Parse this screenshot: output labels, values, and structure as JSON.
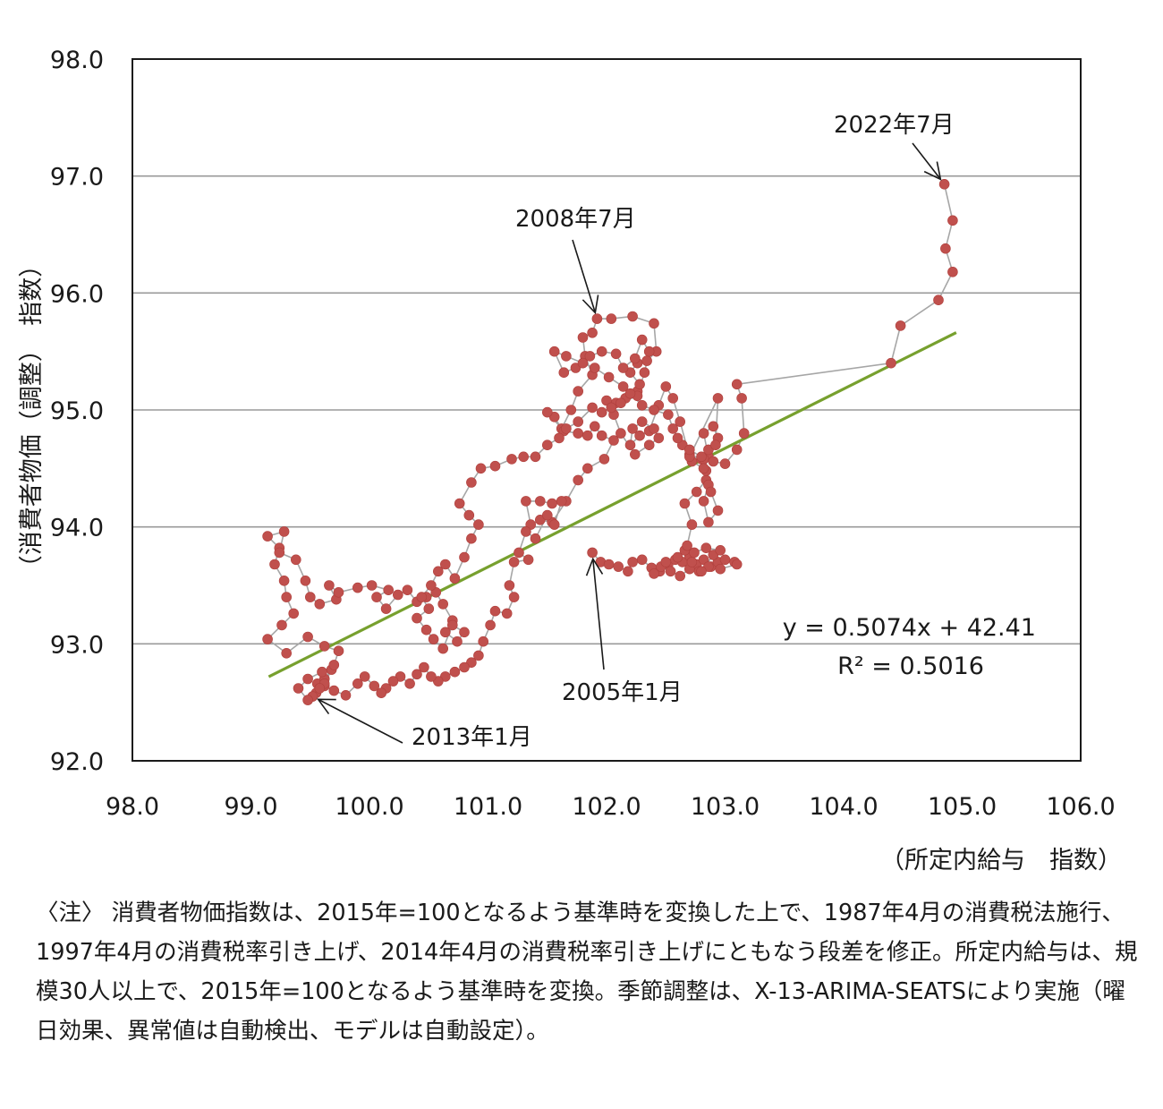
{
  "chart_data": {
    "type": "scatter",
    "ylabel": "（消費者物価（調整）　指数）",
    "xlabel": "（所定内給与　指数）",
    "xlim": [
      98.0,
      106.0
    ],
    "ylim": [
      92.0,
      98.0
    ],
    "x_ticks": [
      "98.0",
      "99.0",
      "100.0",
      "101.0",
      "102.0",
      "103.0",
      "104.0",
      "105.0",
      "106.0"
    ],
    "y_ticks": [
      "92.0",
      "93.0",
      "94.0",
      "95.0",
      "96.0",
      "97.0",
      "98.0"
    ],
    "grid": "horizontal",
    "point_color": "#c0504d",
    "line_color": "#a6a6a6",
    "trend_color": "#77a02e",
    "trendline": {
      "slope": 0.5074,
      "intercept": 42.41,
      "x_range": [
        99.15,
        104.95
      ]
    },
    "equation": "y = 0.5074x + 42.41",
    "r_squared": "R² = 0.5016",
    "annotations": [
      {
        "text": "2022年7月",
        "x": 104.85,
        "y": 96.93
      },
      {
        "text": "2008年7月",
        "x": 101.92,
        "y": 95.78
      },
      {
        "text": "2005年1月",
        "x": 101.88,
        "y": 93.78
      },
      {
        "text": "2013年1月",
        "x": 99.52,
        "y": 92.55
      }
    ],
    "points": [
      [
        101.88,
        93.78
      ],
      [
        101.95,
        93.7
      ],
      [
        102.02,
        93.68
      ],
      [
        102.1,
        93.66
      ],
      [
        102.18,
        93.62
      ],
      [
        102.22,
        93.7
      ],
      [
        102.3,
        93.72
      ],
      [
        102.38,
        93.65
      ],
      [
        102.45,
        93.62
      ],
      [
        102.52,
        93.68
      ],
      [
        102.58,
        93.72
      ],
      [
        102.64,
        93.7
      ],
      [
        102.7,
        93.75
      ],
      [
        102.76,
        93.68
      ],
      [
        102.82,
        93.72
      ],
      [
        102.88,
        93.66
      ],
      [
        102.94,
        93.7
      ],
      [
        103.0,
        93.72
      ],
      [
        103.08,
        93.7
      ],
      [
        103.1,
        93.68
      ],
      [
        102.96,
        93.64
      ],
      [
        102.86,
        93.66
      ],
      [
        102.78,
        93.62
      ],
      [
        102.7,
        93.64
      ],
      [
        102.62,
        93.58
      ],
      [
        102.54,
        93.62
      ],
      [
        102.46,
        93.66
      ],
      [
        102.4,
        93.6
      ],
      [
        102.5,
        93.7
      ],
      [
        102.6,
        93.74
      ],
      [
        102.66,
        93.8
      ],
      [
        102.72,
        93.7
      ],
      [
        102.8,
        93.62
      ],
      [
        102.9,
        93.76
      ],
      [
        102.96,
        93.8
      ],
      [
        102.84,
        93.82
      ],
      [
        102.74,
        93.78
      ],
      [
        102.68,
        93.84
      ],
      [
        102.72,
        94.02
      ],
      [
        102.66,
        94.2
      ],
      [
        102.76,
        94.3
      ],
      [
        102.84,
        94.4
      ],
      [
        102.8,
        94.58
      ],
      [
        102.7,
        94.62
      ],
      [
        102.64,
        94.7
      ],
      [
        102.72,
        94.56
      ],
      [
        102.82,
        94.5
      ],
      [
        102.86,
        94.6
      ],
      [
        102.82,
        94.8
      ],
      [
        102.9,
        94.86
      ],
      [
        102.94,
        94.76
      ],
      [
        102.86,
        94.66
      ],
      [
        102.82,
        94.58
      ],
      [
        102.84,
        94.48
      ],
      [
        102.86,
        94.36
      ],
      [
        102.82,
        94.22
      ],
      [
        102.86,
        94.04
      ],
      [
        102.94,
        94.14
      ],
      [
        102.88,
        94.3
      ],
      [
        102.82,
        94.5
      ],
      [
        102.92,
        94.7
      ],
      [
        102.94,
        95.1
      ],
      [
        102.7,
        94.6
      ],
      [
        102.62,
        94.9
      ],
      [
        102.56,
        95.1
      ],
      [
        102.5,
        95.2
      ],
      [
        102.44,
        95.04
      ],
      [
        102.36,
        94.82
      ],
      [
        102.28,
        94.78
      ],
      [
        102.2,
        94.7
      ],
      [
        102.22,
        94.84
      ],
      [
        102.3,
        94.9
      ],
      [
        102.4,
        94.84
      ],
      [
        102.44,
        94.76
      ],
      [
        102.36,
        94.7
      ],
      [
        102.24,
        94.62
      ],
      [
        102.12,
        94.8
      ],
      [
        102.06,
        94.96
      ],
      [
        102.0,
        95.08
      ],
      [
        102.08,
        95.06
      ],
      [
        102.16,
        95.1
      ],
      [
        102.26,
        95.16
      ],
      [
        102.28,
        95.22
      ],
      [
        102.2,
        95.32
      ],
      [
        102.26,
        95.4
      ],
      [
        102.34,
        95.42
      ],
      [
        102.42,
        95.5
      ],
      [
        102.4,
        95.74
      ],
      [
        102.22,
        95.8
      ],
      [
        102.04,
        95.78
      ],
      [
        101.92,
        95.78
      ],
      [
        101.88,
        95.66
      ],
      [
        101.8,
        95.62
      ],
      [
        101.82,
        95.46
      ],
      [
        101.88,
        95.3
      ],
      [
        101.76,
        95.16
      ],
      [
        101.7,
        95.0
      ],
      [
        101.62,
        94.84
      ],
      [
        101.56,
        94.94
      ],
      [
        101.5,
        94.98
      ],
      [
        101.64,
        94.82
      ],
      [
        101.76,
        94.8
      ],
      [
        101.84,
        94.78
      ],
      [
        101.9,
        94.86
      ],
      [
        101.96,
        94.78
      ],
      [
        102.06,
        94.74
      ],
      [
        101.98,
        94.58
      ],
      [
        101.84,
        94.5
      ],
      [
        101.76,
        94.4
      ],
      [
        101.66,
        94.22
      ],
      [
        101.54,
        94.04
      ],
      [
        101.44,
        94.06
      ],
      [
        101.36,
        94.02
      ],
      [
        101.32,
        94.22
      ],
      [
        101.44,
        94.22
      ],
      [
        101.54,
        94.2
      ],
      [
        101.62,
        94.22
      ],
      [
        101.56,
        94.02
      ],
      [
        101.5,
        94.1
      ],
      [
        101.4,
        93.9
      ],
      [
        101.32,
        93.96
      ],
      [
        101.26,
        93.78
      ],
      [
        101.34,
        93.72
      ],
      [
        101.22,
        93.7
      ],
      [
        101.18,
        93.5
      ],
      [
        101.22,
        93.4
      ],
      [
        101.16,
        93.26
      ],
      [
        101.06,
        93.28
      ],
      [
        101.02,
        93.16
      ],
      [
        100.96,
        93.02
      ],
      [
        100.92,
        92.9
      ],
      [
        100.86,
        92.84
      ],
      [
        100.8,
        92.8
      ],
      [
        100.72,
        92.76
      ],
      [
        100.64,
        92.72
      ],
      [
        100.58,
        92.68
      ],
      [
        100.52,
        92.72
      ],
      [
        100.46,
        92.8
      ],
      [
        100.4,
        92.74
      ],
      [
        100.34,
        92.66
      ],
      [
        100.26,
        92.72
      ],
      [
        100.2,
        92.68
      ],
      [
        100.14,
        92.62
      ],
      [
        100.1,
        92.58
      ],
      [
        100.04,
        92.64
      ],
      [
        99.96,
        92.72
      ],
      [
        99.9,
        92.66
      ],
      [
        99.8,
        92.56
      ],
      [
        99.7,
        92.6
      ],
      [
        99.62,
        92.64
      ],
      [
        99.55,
        92.58
      ],
      [
        99.52,
        92.55
      ],
      [
        99.56,
        92.66
      ],
      [
        99.62,
        92.7
      ],
      [
        99.68,
        92.78
      ],
      [
        99.62,
        92.66
      ],
      [
        99.58,
        92.62
      ],
      [
        99.48,
        92.52
      ],
      [
        99.4,
        92.62
      ],
      [
        99.48,
        92.7
      ],
      [
        99.6,
        92.76
      ],
      [
        99.7,
        92.82
      ],
      [
        99.74,
        92.94
      ],
      [
        99.62,
        92.98
      ],
      [
        99.48,
        93.06
      ],
      [
        99.3,
        92.92
      ],
      [
        99.14,
        93.04
      ],
      [
        99.26,
        93.16
      ],
      [
        99.36,
        93.26
      ],
      [
        99.3,
        93.4
      ],
      [
        99.28,
        93.54
      ],
      [
        99.2,
        93.68
      ],
      [
        99.24,
        93.82
      ],
      [
        99.14,
        93.92
      ],
      [
        99.28,
        93.96
      ],
      [
        99.24,
        93.78
      ],
      [
        99.38,
        93.72
      ],
      [
        99.46,
        93.54
      ],
      [
        99.5,
        93.4
      ],
      [
        99.58,
        93.34
      ],
      [
        99.72,
        93.38
      ],
      [
        99.66,
        93.5
      ],
      [
        99.74,
        93.44
      ],
      [
        99.9,
        93.48
      ],
      [
        100.02,
        93.5
      ],
      [
        100.16,
        93.46
      ],
      [
        100.06,
        93.4
      ],
      [
        100.14,
        93.3
      ],
      [
        100.24,
        93.42
      ],
      [
        100.32,
        93.46
      ],
      [
        100.4,
        93.36
      ],
      [
        100.48,
        93.4
      ],
      [
        100.56,
        93.44
      ],
      [
        100.62,
        93.34
      ],
      [
        100.7,
        93.2
      ],
      [
        100.64,
        93.1
      ],
      [
        100.74,
        93.02
      ],
      [
        100.8,
        93.1
      ],
      [
        100.7,
        93.16
      ],
      [
        100.62,
        92.96
      ],
      [
        100.54,
        93.04
      ],
      [
        100.48,
        93.12
      ],
      [
        100.4,
        93.22
      ],
      [
        100.5,
        93.3
      ],
      [
        100.44,
        93.4
      ],
      [
        100.52,
        93.5
      ],
      [
        100.58,
        93.62
      ],
      [
        100.64,
        93.68
      ],
      [
        100.72,
        93.56
      ],
      [
        100.8,
        93.74
      ],
      [
        100.86,
        93.9
      ],
      [
        100.92,
        94.02
      ],
      [
        100.84,
        94.1
      ],
      [
        100.76,
        94.2
      ],
      [
        100.86,
        94.38
      ],
      [
        100.94,
        94.5
      ],
      [
        101.06,
        94.52
      ],
      [
        101.2,
        94.58
      ],
      [
        101.3,
        94.6
      ],
      [
        101.4,
        94.6
      ],
      [
        101.5,
        94.7
      ],
      [
        101.6,
        94.76
      ],
      [
        101.66,
        94.84
      ],
      [
        101.76,
        94.9
      ],
      [
        101.88,
        95.02
      ],
      [
        101.96,
        94.98
      ],
      [
        102.04,
        95.02
      ],
      [
        102.12,
        95.06
      ],
      [
        102.26,
        95.12
      ],
      [
        102.32,
        95.32
      ],
      [
        102.36,
        95.5
      ],
      [
        102.3,
        95.6
      ],
      [
        102.24,
        95.44
      ],
      [
        102.14,
        95.36
      ],
      [
        102.08,
        95.48
      ],
      [
        101.96,
        95.5
      ],
      [
        101.86,
        95.46
      ],
      [
        101.74,
        95.36
      ],
      [
        101.64,
        95.32
      ],
      [
        101.56,
        95.5
      ],
      [
        101.66,
        95.46
      ],
      [
        101.8,
        95.4
      ],
      [
        101.9,
        95.36
      ],
      [
        102.02,
        95.28
      ],
      [
        102.14,
        95.2
      ],
      [
        102.2,
        95.14
      ],
      [
        102.3,
        95.04
      ],
      [
        102.4,
        95.0
      ],
      [
        102.52,
        94.96
      ],
      [
        102.56,
        94.84
      ],
      [
        102.6,
        94.76
      ],
      [
        102.7,
        94.66
      ],
      [
        102.8,
        94.6
      ],
      [
        102.9,
        94.56
      ],
      [
        103.0,
        94.54
      ],
      [
        103.1,
        94.66
      ],
      [
        103.16,
        94.8
      ],
      [
        103.14,
        95.1
      ],
      [
        103.1,
        95.22
      ],
      [
        104.4,
        95.4
      ],
      [
        104.48,
        95.72
      ],
      [
        104.8,
        95.94
      ],
      [
        104.92,
        96.18
      ],
      [
        104.86,
        96.38
      ],
      [
        104.92,
        96.62
      ],
      [
        104.85,
        96.93
      ]
    ]
  },
  "note_text": "〈注〉 消費者物価指数は、2015年=100となるよう基準時を変換した上で、1987年4月の消費税法施行、1997年4月の消費税率引き上げ、2014年4月の消費税率引き上げにともなう段差を修正。所定内給与は、規模30人以上で、2015年=100となるよう基準時を変換。季節調整は、X-13-ARIMA-SEATSにより実施（曜日効果、異常値は自動検出、モデルは自動設定）。"
}
